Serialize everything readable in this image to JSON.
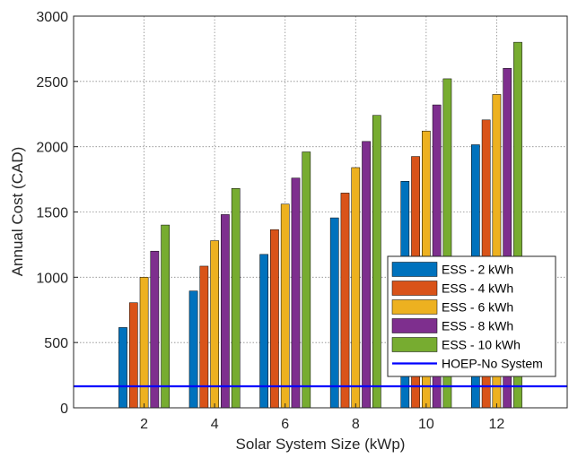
{
  "chart_data": {
    "type": "bar",
    "xlabel": "Solar System Size (kWp)",
    "ylabel": "Annual Cost (CAD)",
    "categories": [
      "2",
      "4",
      "6",
      "8",
      "10",
      "12"
    ],
    "x_ticks": [
      "2",
      "4",
      "6",
      "8",
      "10",
      "12"
    ],
    "y_ticks": [
      "0",
      "500",
      "1000",
      "1500",
      "2000",
      "2500",
      "3000"
    ],
    "ylim": [
      0,
      3000
    ],
    "grid": true,
    "legend_position": "bottom-right",
    "series": [
      {
        "name": "ESS - 2 kWh",
        "color": "#0072BD",
        "values": [
          615,
          895,
          1175,
          1455,
          1735,
          2015
        ]
      },
      {
        "name": "ESS - 4 kWh",
        "color": "#D95319",
        "values": [
          805,
          1085,
          1365,
          1645,
          1925,
          2205
        ]
      },
      {
        "name": "ESS - 6 kWh",
        "color": "#EDB120",
        "values": [
          1000,
          1280,
          1560,
          1840,
          2120,
          2400
        ]
      },
      {
        "name": "ESS - 8 kWh",
        "color": "#7E2F8E",
        "values": [
          1200,
          1480,
          1760,
          2040,
          2320,
          2600
        ]
      },
      {
        "name": "ESS - 10 kWh",
        "color": "#77AC30",
        "values": [
          1400,
          1680,
          1960,
          2240,
          2520,
          2800
        ]
      }
    ],
    "reference_line": {
      "name": "HOEP-No System",
      "color": "#0000FF",
      "value": 165
    }
  }
}
